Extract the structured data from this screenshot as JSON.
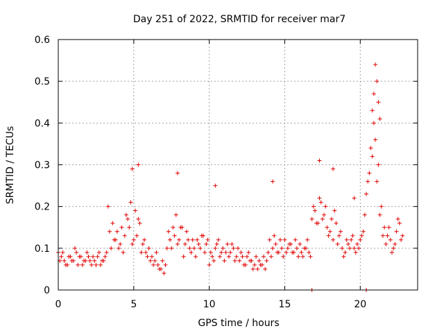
{
  "chart_data": {
    "type": "scatter",
    "title": "Day 251 of 2022, SRMTID for receiver mar7",
    "xlabel": "GPS time / hours",
    "ylabel": "SRMTID / TECUs",
    "xlim": [
      0,
      23.8
    ],
    "ylim": [
      0,
      0.6
    ],
    "x_ticks": [
      0,
      5,
      10,
      15,
      20
    ],
    "x_tick_labels": [
      "0",
      "5",
      "10",
      "15",
      "20"
    ],
    "y_ticks": [
      0,
      0.1,
      0.2,
      0.3,
      0.4,
      0.5,
      0.6
    ],
    "y_tick_labels": [
      "0",
      "0.1",
      "0.2",
      "0.3",
      "0.4",
      "0.5",
      "0.6"
    ],
    "grid": true,
    "marker": "+",
    "color": "#e00000",
    "series": [
      {
        "name": "SRMTID",
        "x": [
          0.0,
          0.2,
          0.4,
          0.6,
          0.8,
          1.0,
          1.2,
          1.4,
          1.6,
          1.8,
          2.0,
          2.2,
          2.4,
          2.6,
          2.8,
          3.0,
          3.2,
          3.4,
          3.6,
          3.8,
          4.0,
          4.2,
          4.4,
          4.6,
          4.8,
          5.0,
          5.2,
          5.4,
          5.6,
          5.8,
          6.0,
          6.2,
          6.4,
          6.6,
          6.8,
          7.0,
          7.2,
          7.4,
          7.6,
          7.8,
          8.0,
          8.2,
          8.4,
          8.6,
          8.8,
          9.0,
          9.2,
          9.4,
          9.6,
          9.8,
          10.0,
          10.2,
          10.4,
          10.6,
          10.8,
          11.0,
          11.2,
          11.4,
          11.6,
          11.8,
          12.0,
          12.2,
          12.4,
          12.6,
          12.8,
          13.0,
          13.2,
          13.4,
          13.6,
          13.8,
          14.0,
          14.2,
          14.4,
          14.6,
          14.8,
          15.0,
          15.2,
          15.4,
          15.6,
          15.8,
          16.0,
          16.2,
          16.4,
          16.6,
          16.8,
          17.0,
          17.2,
          17.4,
          17.6,
          17.8,
          18.0,
          18.2,
          18.4,
          18.6,
          18.8,
          19.0,
          19.2,
          19.4,
          19.6,
          19.8,
          20.0,
          20.2,
          20.4,
          20.6,
          20.8,
          21.0,
          21.2,
          21.4,
          21.6,
          21.8,
          22.0,
          22.2,
          22.4,
          22.6,
          22.8,
          0.1,
          0.3,
          0.5,
          0.7,
          0.9,
          1.1,
          1.3,
          1.5,
          1.7,
          1.9,
          2.1,
          2.3,
          2.5,
          2.7,
          2.9,
          3.1,
          3.3,
          3.5,
          3.7,
          3.9,
          4.1,
          4.3,
          4.5,
          4.7,
          4.9,
          5.1,
          5.3,
          5.5,
          5.7,
          5.9,
          6.1,
          6.3,
          6.5,
          6.7,
          6.9,
          7.1,
          7.3,
          7.5,
          7.7,
          7.9,
          8.1,
          8.3,
          8.5,
          8.7,
          8.9,
          9.1,
          9.3,
          9.5,
          9.7,
          9.9,
          10.1,
          10.3,
          10.5,
          10.7,
          10.9,
          11.1,
          11.3,
          11.5,
          11.7,
          11.9,
          12.1,
          12.3,
          12.5,
          12.7,
          12.9,
          13.1,
          13.3,
          13.5,
          13.7,
          13.9,
          14.1,
          14.3,
          14.5,
          14.7,
          14.9,
          15.1,
          15.3,
          15.5,
          15.7,
          15.9,
          16.1,
          16.3,
          16.5,
          16.7,
          16.9,
          17.1,
          17.3,
          17.5,
          17.7,
          17.9,
          18.1,
          18.3,
          18.5,
          18.7,
          18.9,
          19.1,
          19.3,
          19.5,
          19.7,
          19.9,
          20.1,
          20.3,
          20.5,
          20.7,
          20.9,
          21.1,
          21.3,
          21.5,
          21.7,
          21.9,
          22.1,
          22.3,
          22.5,
          22.7,
          4.9,
          5.3,
          7.9,
          10.4,
          14.2,
          17.3,
          18.2,
          19.6,
          20.8,
          20.9,
          21.0,
          21.1,
          21.2,
          21.3,
          16.8,
          20.4
        ],
        "y": [
          0.09,
          0.08,
          0.07,
          0.06,
          0.08,
          0.07,
          0.09,
          0.08,
          0.06,
          0.07,
          0.08,
          0.06,
          0.07,
          0.08,
          0.06,
          0.07,
          0.09,
          0.14,
          0.16,
          0.12,
          0.1,
          0.15,
          0.13,
          0.17,
          0.21,
          0.12,
          0.13,
          0.16,
          0.11,
          0.09,
          0.1,
          0.08,
          0.07,
          0.06,
          0.05,
          0.04,
          0.1,
          0.12,
          0.15,
          0.18,
          0.12,
          0.15,
          0.11,
          0.12,
          0.09,
          0.1,
          0.12,
          0.1,
          0.13,
          0.11,
          0.06,
          0.08,
          0.1,
          0.12,
          0.09,
          0.07,
          0.11,
          0.09,
          0.1,
          0.08,
          0.07,
          0.08,
          0.06,
          0.09,
          0.07,
          0.06,
          0.05,
          0.06,
          0.08,
          0.07,
          0.12,
          0.1,
          0.11,
          0.09,
          0.1,
          0.12,
          0.1,
          0.11,
          0.09,
          0.1,
          0.11,
          0.08,
          0.1,
          0.09,
          0.17,
          0.19,
          0.16,
          0.21,
          0.18,
          0.15,
          0.14,
          0.12,
          0.16,
          0.13,
          0.1,
          0.09,
          0.11,
          0.12,
          0.1,
          0.11,
          0.12,
          0.14,
          0.23,
          0.28,
          0.32,
          0.36,
          0.3,
          0.2,
          0.15,
          0.13,
          0.12,
          0.1,
          0.14,
          0.16,
          0.13,
          0.07,
          0.09,
          0.06,
          0.08,
          0.07,
          0.1,
          0.06,
          0.08,
          0.07,
          0.09,
          0.07,
          0.08,
          0.06,
          0.09,
          0.07,
          0.08,
          0.2,
          0.1,
          0.12,
          0.14,
          0.11,
          0.09,
          0.18,
          0.15,
          0.11,
          0.19,
          0.17,
          0.09,
          0.12,
          0.08,
          0.07,
          0.06,
          0.09,
          0.05,
          0.07,
          0.06,
          0.14,
          0.1,
          0.13,
          0.11,
          0.15,
          0.08,
          0.14,
          0.1,
          0.12,
          0.08,
          0.11,
          0.13,
          0.09,
          0.12,
          0.09,
          0.07,
          0.11,
          0.08,
          0.1,
          0.09,
          0.08,
          0.11,
          0.07,
          0.1,
          0.09,
          0.06,
          0.08,
          0.07,
          0.05,
          0.08,
          0.07,
          0.06,
          0.05,
          0.09,
          0.08,
          0.13,
          0.09,
          0.12,
          0.08,
          0.09,
          0.11,
          0.09,
          0.12,
          0.08,
          0.09,
          0.1,
          0.12,
          0.08,
          0.2,
          0.16,
          0.22,
          0.17,
          0.2,
          0.13,
          0.17,
          0.19,
          0.11,
          0.14,
          0.08,
          0.12,
          0.1,
          0.13,
          0.09,
          0.1,
          0.13,
          0.18,
          0.26,
          0.34,
          0.4,
          0.26,
          0.18,
          0.13,
          0.11,
          0.15,
          0.09,
          0.11,
          0.17,
          0.12,
          0.29,
          0.3,
          0.28,
          0.25,
          0.26,
          0.31,
          0.29,
          0.22,
          0.43,
          0.47,
          0.54,
          0.5,
          0.45,
          0.41,
          0.0,
          0.0
        ]
      }
    ]
  }
}
